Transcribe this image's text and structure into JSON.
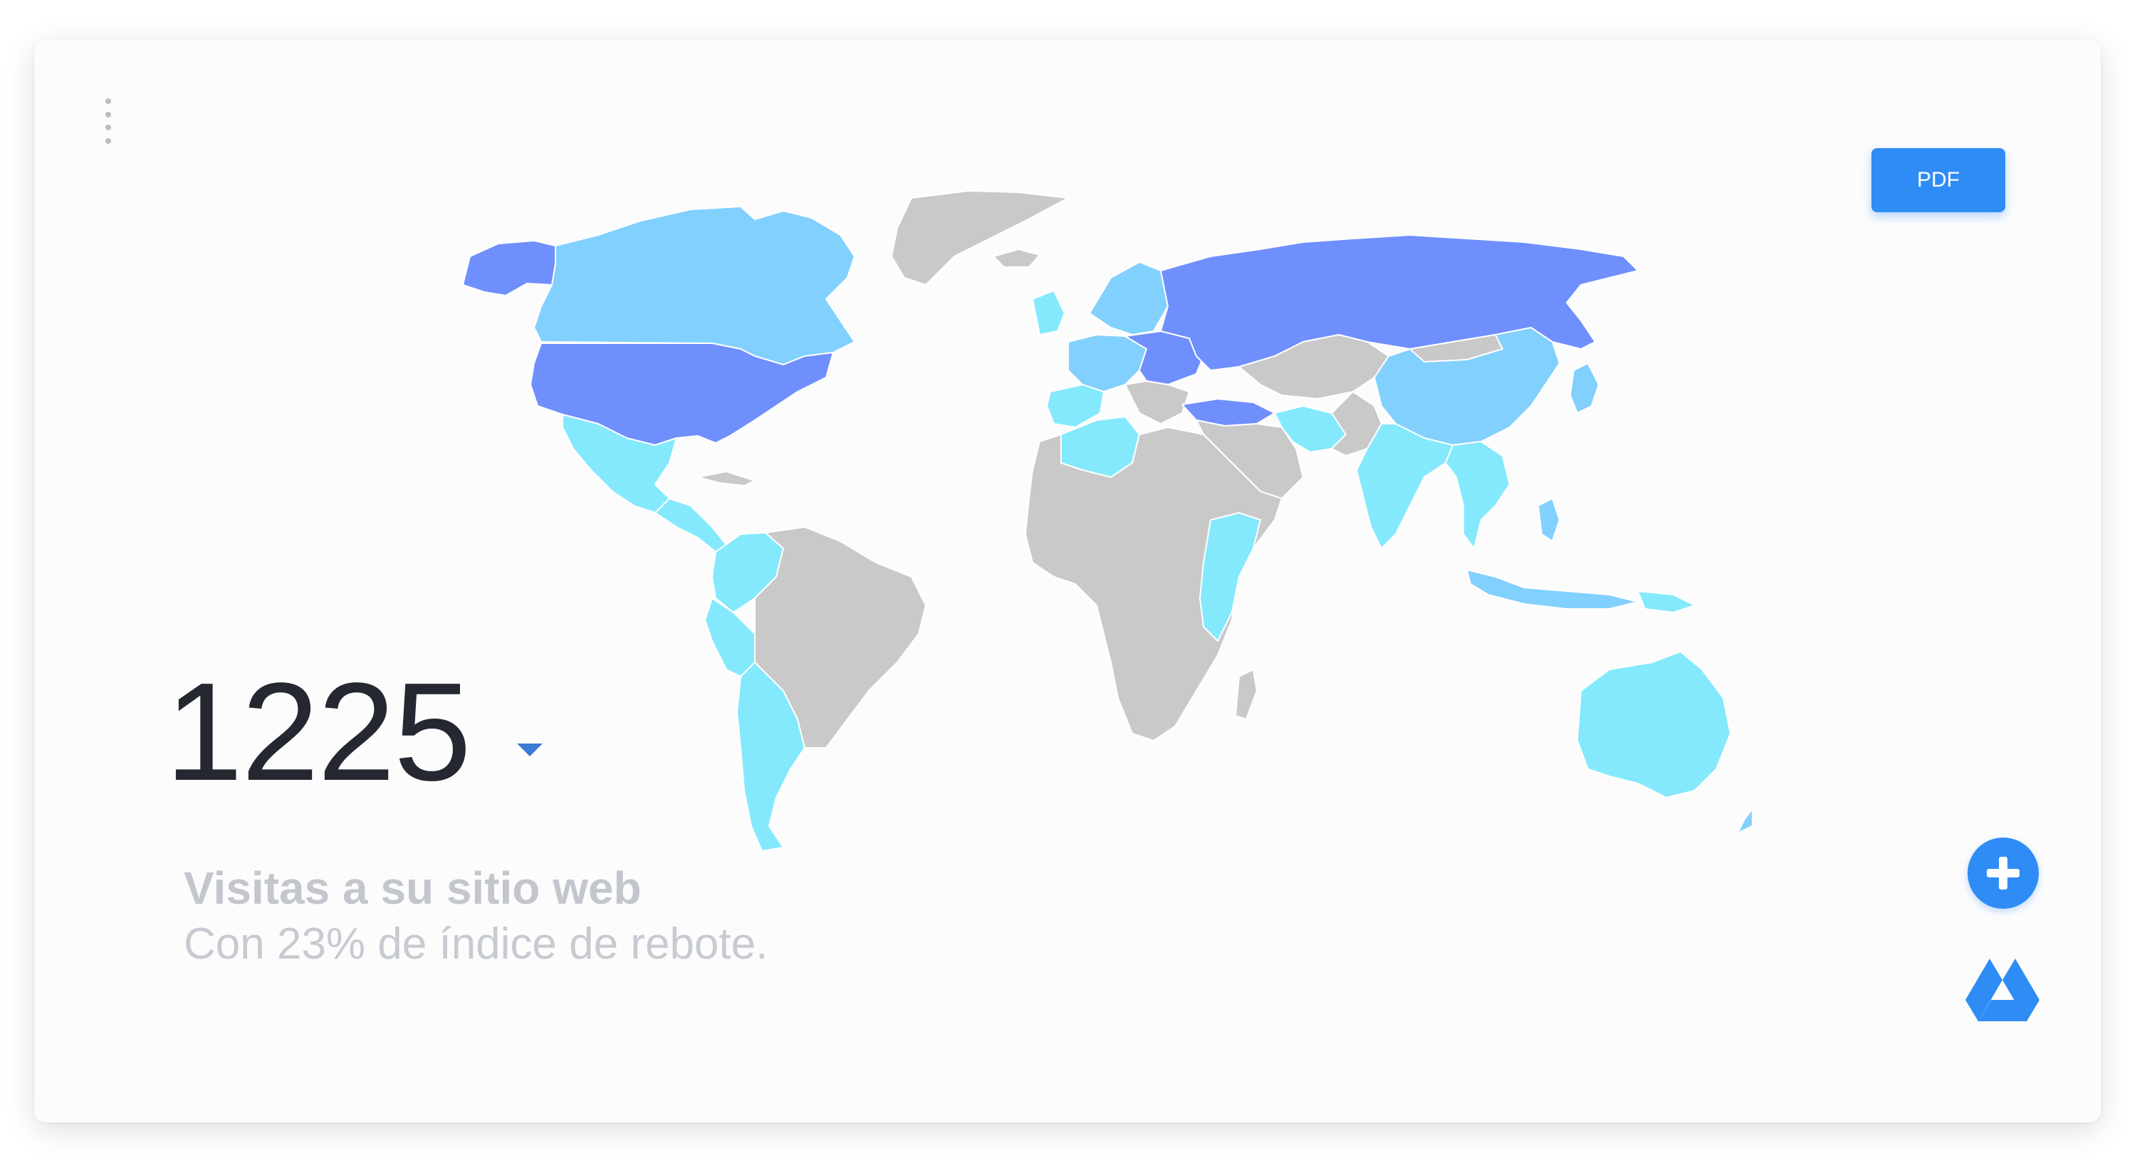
{
  "widget": {
    "visits_count": "1225",
    "title": "Visitas a su sitio web",
    "subtitle": "Con 23% de índice de rebote.",
    "trend": "down"
  },
  "toolbar": {
    "pdf_label": "PDF"
  },
  "icons": {
    "menu": "vertical-dots-icon",
    "trend": "caret-down-icon",
    "add": "plus-circle-icon",
    "drive": "google-drive-icon"
  },
  "map": {
    "legend_colors": {
      "high": "#6e8ffc",
      "medium": "#82d0fd",
      "low": "#85e9fd",
      "none": "#c9c9c9"
    }
  },
  "colors": {
    "accent": "#2f8cf5",
    "count_text": "#252831",
    "muted_text": "#c3c7cd"
  }
}
